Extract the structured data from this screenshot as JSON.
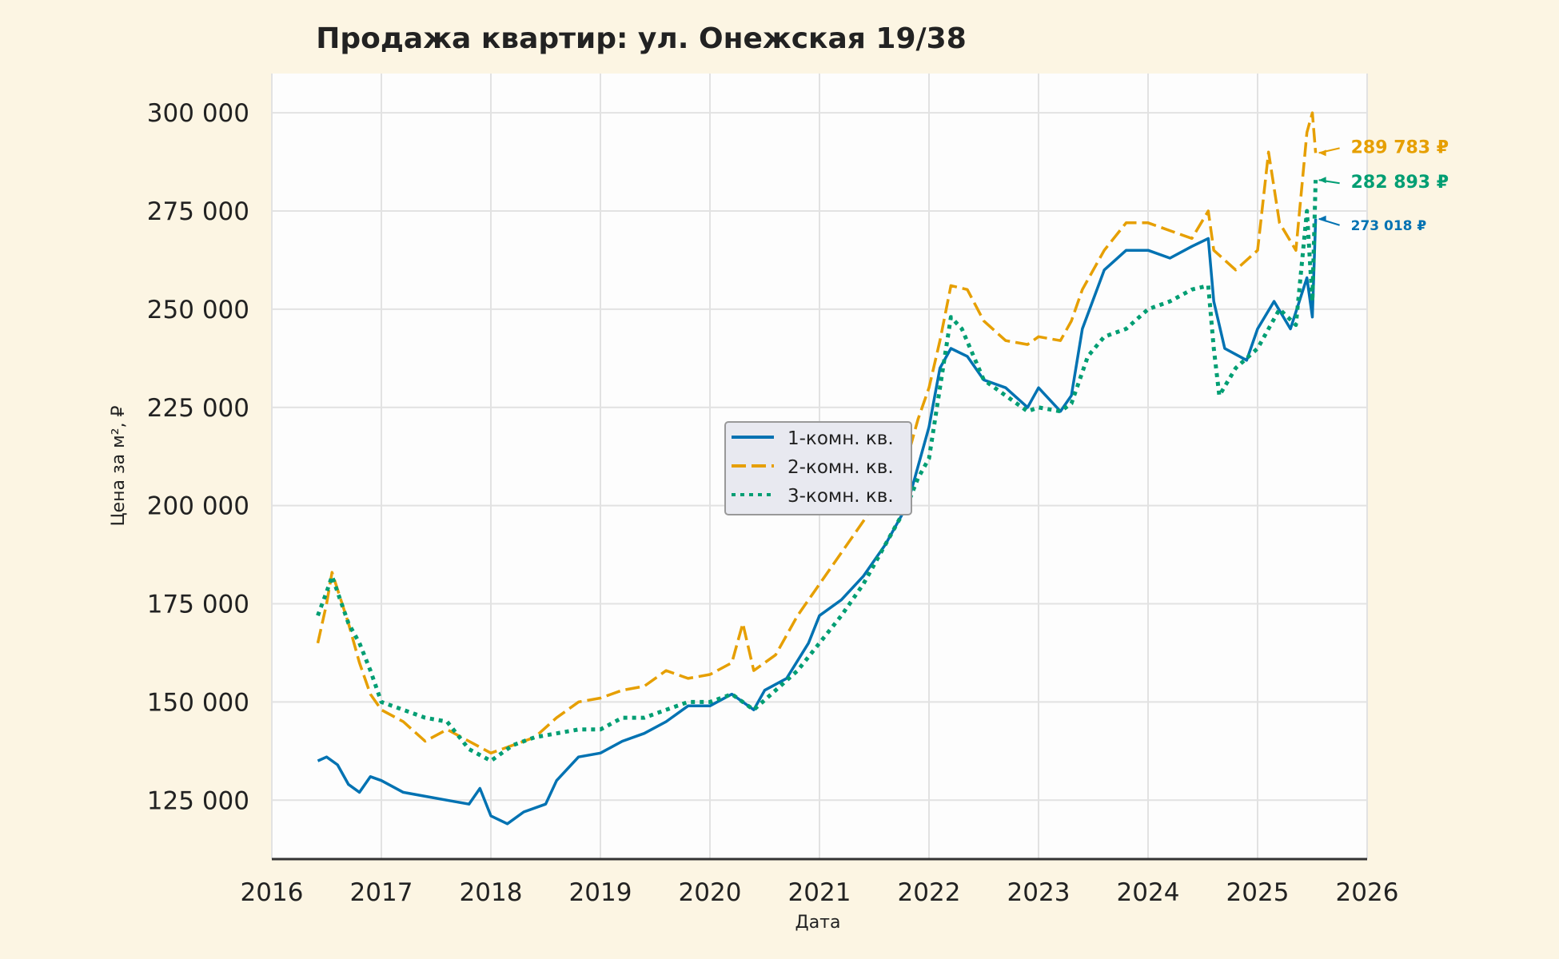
{
  "chart_data": {
    "type": "line",
    "title": "Продажа квартир: ул. Онежская 19/38",
    "xlabel": "Дата",
    "ylabel": "Цена за м², ₽",
    "xlim": [
      2016,
      2026
    ],
    "ylim": [
      110000,
      310000
    ],
    "x_ticks": [
      2016,
      2017,
      2018,
      2019,
      2020,
      2021,
      2022,
      2023,
      2024,
      2025,
      2026
    ],
    "y_ticks": [
      125000,
      150000,
      175000,
      200000,
      225000,
      250000,
      275000,
      300000
    ],
    "y_tick_labels": [
      "125 000",
      "150 000",
      "175 000",
      "200 000",
      "225 000",
      "250 000",
      "275 000",
      "300 000"
    ],
    "grid": true,
    "legend_position": "center",
    "series": [
      {
        "name": "1-комн. кв.",
        "color": "#0072b2",
        "style": "solid",
        "end_label": "273 018 ₽",
        "x": [
          2016.42,
          2016.5,
          2016.6,
          2016.7,
          2016.8,
          2016.9,
          2017.0,
          2017.2,
          2017.4,
          2017.6,
          2017.8,
          2017.9,
          2018.0,
          2018.15,
          2018.3,
          2018.5,
          2018.6,
          2018.8,
          2019.0,
          2019.2,
          2019.4,
          2019.6,
          2019.8,
          2020.0,
          2020.2,
          2020.4,
          2020.5,
          2020.7,
          2020.9,
          2021.0,
          2021.2,
          2021.4,
          2021.6,
          2021.8,
          2021.9,
          2022.0,
          2022.1,
          2022.2,
          2022.35,
          2022.5,
          2022.7,
          2022.9,
          2023.0,
          2023.2,
          2023.3,
          2023.4,
          2023.6,
          2023.8,
          2024.0,
          2024.2,
          2024.4,
          2024.55,
          2024.6,
          2024.7,
          2024.9,
          2025.0,
          2025.15,
          2025.3,
          2025.45,
          2025.5,
          2025.53
        ],
        "y": [
          135000,
          136000,
          134000,
          129000,
          127000,
          131000,
          130000,
          127000,
          126000,
          125000,
          124000,
          128000,
          121000,
          119000,
          122000,
          124000,
          130000,
          136000,
          137000,
          140000,
          142000,
          145000,
          149000,
          149000,
          152000,
          148000,
          153000,
          156000,
          165000,
          172000,
          176000,
          182000,
          190000,
          200000,
          210000,
          220000,
          235000,
          240000,
          238000,
          232000,
          230000,
          225000,
          230000,
          224000,
          228000,
          245000,
          260000,
          265000,
          265000,
          263000,
          266000,
          268000,
          252000,
          240000,
          237000,
          245000,
          252000,
          245000,
          258000,
          248000,
          273018
        ]
      },
      {
        "name": "2-комн. кв.",
        "color": "#e69f00",
        "style": "dashed",
        "end_label": "289 783 ₽",
        "x": [
          2016.42,
          2016.5,
          2016.55,
          2016.7,
          2016.8,
          2016.9,
          2017.0,
          2017.2,
          2017.4,
          2017.6,
          2017.8,
          2018.0,
          2018.2,
          2018.4,
          2018.6,
          2018.8,
          2019.0,
          2019.2,
          2019.4,
          2019.6,
          2019.8,
          2020.0,
          2020.2,
          2020.3,
          2020.4,
          2020.6,
          2020.8,
          2021.0,
          2021.2,
          2021.4,
          2021.6,
          2021.8,
          2021.9,
          2022.0,
          2022.1,
          2022.2,
          2022.35,
          2022.5,
          2022.7,
          2022.9,
          2023.0,
          2023.2,
          2023.3,
          2023.4,
          2023.6,
          2023.8,
          2024.0,
          2024.2,
          2024.4,
          2024.55,
          2024.6,
          2024.8,
          2025.0,
          2025.1,
          2025.2,
          2025.35,
          2025.45,
          2025.5,
          2025.53
        ],
        "y": [
          165000,
          175000,
          183000,
          170000,
          160000,
          152000,
          148000,
          145000,
          140000,
          143000,
          140000,
          137000,
          139000,
          141000,
          146000,
          150000,
          151000,
          153000,
          154000,
          158000,
          156000,
          157000,
          160000,
          170000,
          158000,
          162000,
          172000,
          180000,
          188000,
          196000,
          205000,
          212000,
          222000,
          230000,
          242000,
          256000,
          255000,
          247000,
          242000,
          241000,
          243000,
          242000,
          247000,
          255000,
          265000,
          272000,
          272000,
          270000,
          268000,
          275000,
          265000,
          260000,
          265000,
          290000,
          272000,
          265000,
          295000,
          300000,
          289783
        ]
      },
      {
        "name": "3-комн. кв.",
        "color": "#009e73",
        "style": "dotted",
        "end_label": "282 893 ₽",
        "x": [
          2016.42,
          2016.5,
          2016.55,
          2016.7,
          2016.8,
          2016.9,
          2017.0,
          2017.2,
          2017.4,
          2017.6,
          2017.8,
          2018.0,
          2018.2,
          2018.4,
          2018.6,
          2018.8,
          2019.0,
          2019.2,
          2019.4,
          2019.6,
          2019.8,
          2020.0,
          2020.2,
          2020.4,
          2020.6,
          2020.8,
          2021.0,
          2021.2,
          2021.4,
          2021.6,
          2021.8,
          2021.9,
          2022.0,
          2022.1,
          2022.2,
          2022.3,
          2022.5,
          2022.7,
          2022.9,
          2023.0,
          2023.2,
          2023.3,
          2023.45,
          2023.6,
          2023.8,
          2024.0,
          2024.2,
          2024.4,
          2024.55,
          2024.6,
          2024.65,
          2024.8,
          2025.0,
          2025.2,
          2025.35,
          2025.45,
          2025.5,
          2025.53
        ],
        "y": [
          172000,
          178000,
          182000,
          170000,
          165000,
          158000,
          150000,
          148000,
          146000,
          145000,
          138000,
          135000,
          139000,
          141000,
          142000,
          143000,
          143000,
          146000,
          146000,
          148000,
          150000,
          150000,
          152000,
          148000,
          153000,
          158000,
          165000,
          172000,
          180000,
          190000,
          200000,
          207000,
          212000,
          230000,
          248000,
          245000,
          232000,
          228000,
          224000,
          225000,
          224000,
          226000,
          238000,
          243000,
          245000,
          250000,
          252000,
          255000,
          256000,
          240000,
          228000,
          235000,
          240000,
          250000,
          246000,
          275000,
          252000,
          282893
        ]
      }
    ]
  }
}
